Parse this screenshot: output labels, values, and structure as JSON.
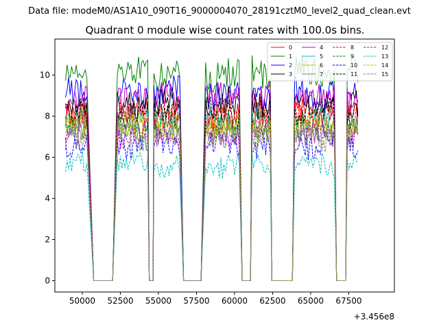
{
  "chart_data": {
    "type": "line",
    "suptitle": "Data file: modeM0/AS1A10_090T16_9000004070_28191cztM0_level2_quad_clean.evt",
    "title": "Quadrant 0 module wise count rates with 100.0s bins.",
    "xlabel": "",
    "ylabel": "",
    "x_offset_label": "+3.456e8",
    "xlim": [
      48200,
      70500
    ],
    "ylim": [
      -0.55,
      11.75
    ],
    "xticks": [
      50000,
      52500,
      55000,
      57500,
      60000,
      62500,
      65000,
      67500
    ],
    "xtick_labels": [
      "50000",
      "52500",
      "55000",
      "57500",
      "60000",
      "62500",
      "65000",
      "67500"
    ],
    "yticks": [
      0,
      2,
      4,
      6,
      8,
      10
    ],
    "ytick_labels": [
      "0",
      "2",
      "4",
      "6",
      "8",
      "10"
    ],
    "grid": false,
    "legend_position": "top-right",
    "segments": [
      {
        "type": "on",
        "x0": 48900,
        "x1": 50300
      },
      {
        "type": "drop",
        "x0": 50300,
        "x1": 50750
      },
      {
        "type": "off",
        "x0": 50750,
        "x1": 52000
      },
      {
        "type": "rise",
        "x0": 52000,
        "x1": 52300
      },
      {
        "type": "on",
        "x0": 52300,
        "x1": 54300
      },
      {
        "type": "drop",
        "x0": 54300,
        "x1": 54400
      },
      {
        "type": "off",
        "x0": 54400,
        "x1": 54650
      },
      {
        "type": "rise",
        "x0": 54650,
        "x1": 54700
      },
      {
        "type": "on",
        "x0": 54700,
        "x1": 56450
      },
      {
        "type": "drop",
        "x0": 56450,
        "x1": 56650
      },
      {
        "type": "off",
        "x0": 56650,
        "x1": 57800
      },
      {
        "type": "rise",
        "x0": 57800,
        "x1": 58100
      },
      {
        "type": "on",
        "x0": 58100,
        "x1": 60350
      },
      {
        "type": "drop",
        "x0": 60350,
        "x1": 60500
      },
      {
        "type": "off",
        "x0": 60500,
        "x1": 61050
      },
      {
        "type": "rise",
        "x0": 61050,
        "x1": 61150
      },
      {
        "type": "on",
        "x0": 61150,
        "x1": 62350
      },
      {
        "type": "drop",
        "x0": 62350,
        "x1": 62450
      },
      {
        "type": "off",
        "x0": 62450,
        "x1": 63800
      },
      {
        "type": "rise",
        "x0": 63800,
        "x1": 63950
      },
      {
        "type": "on",
        "x0": 63950,
        "x1": 66600
      },
      {
        "type": "drop",
        "x0": 66600,
        "x1": 66700
      },
      {
        "type": "off",
        "x0": 66700,
        "x1": 67300
      },
      {
        "type": "rise",
        "x0": 67300,
        "x1": 67400
      },
      {
        "type": "on",
        "x0": 67400,
        "x1": 68150
      }
    ],
    "bin_width": 100,
    "series": [
      {
        "name": "0",
        "color": "#ff0000",
        "dash": "solid",
        "level": 8.1
      },
      {
        "name": "1",
        "color": "#008000",
        "dash": "solid",
        "level": 10.1
      },
      {
        "name": "2",
        "color": "#0000ff",
        "dash": "solid",
        "level": 9.1
      },
      {
        "name": "3",
        "color": "#000000",
        "dash": "solid",
        "level": 8.6
      },
      {
        "name": "4",
        "color": "#bf00bf",
        "dash": "solid",
        "level": 8.9
      },
      {
        "name": "5",
        "color": "#00bfbf",
        "dash": "solid",
        "level": 7.7
      },
      {
        "name": "6",
        "color": "#bfbf00",
        "dash": "solid",
        "level": 7.6
      },
      {
        "name": "7",
        "color": "#808080",
        "dash": "solid",
        "level": 7.2
      },
      {
        "name": "8",
        "color": "#ff0000",
        "dash": "dashed",
        "level": 8.0
      },
      {
        "name": "9",
        "color": "#008000",
        "dash": "dashed",
        "level": 7.5
      },
      {
        "name": "10",
        "color": "#0000ff",
        "dash": "dashed",
        "level": 6.6
      },
      {
        "name": "11",
        "color": "#000000",
        "dash": "dashed",
        "level": 8.2
      },
      {
        "name": "12",
        "color": "#bf00bf",
        "dash": "dashed",
        "level": 7.1
      },
      {
        "name": "13",
        "color": "#00bfbf",
        "dash": "dashed",
        "level": 5.7
      },
      {
        "name": "14",
        "color": "#bfbf00",
        "dash": "dashed",
        "level": 7.4
      },
      {
        "name": "15",
        "color": "#808080",
        "dash": "dashed",
        "level": 7.0
      }
    ]
  }
}
